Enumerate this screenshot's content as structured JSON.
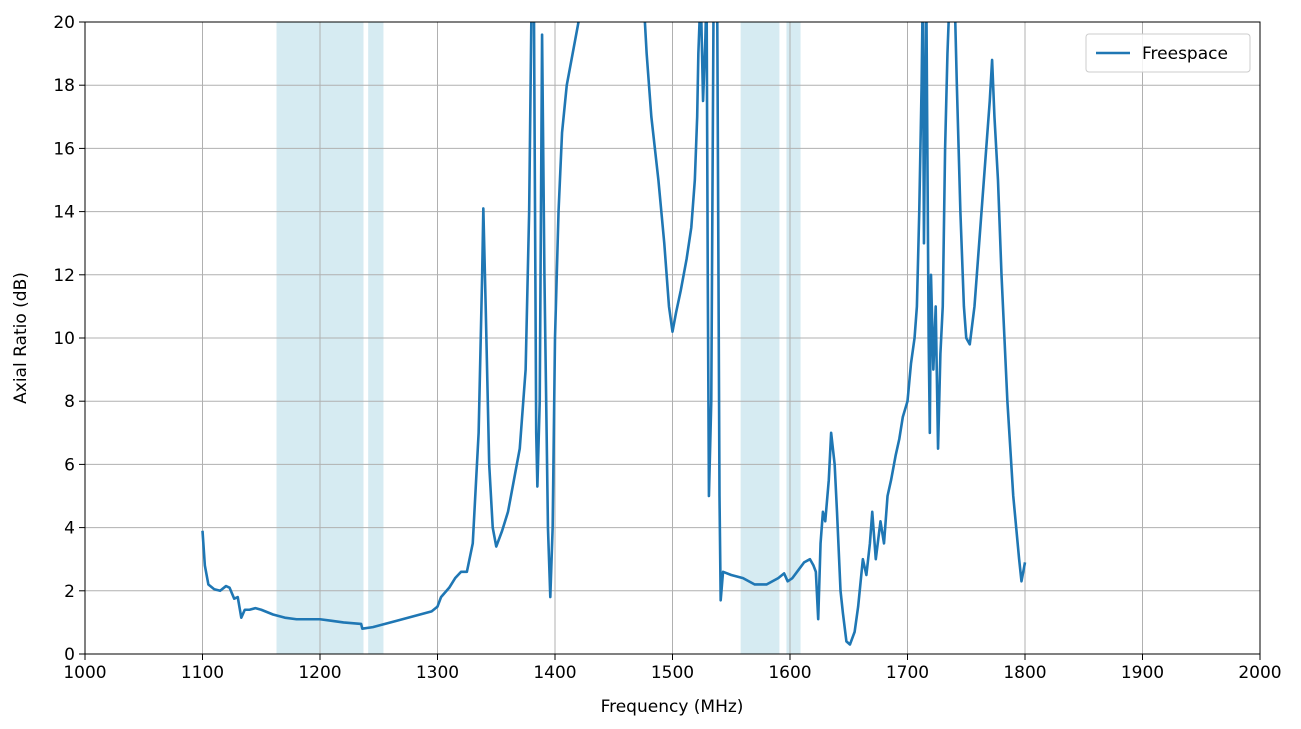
{
  "chart_data": {
    "type": "line",
    "xlabel": "Frequency (MHz)",
    "ylabel": "Axial Ratio (dB)",
    "xlim": [
      1000,
      2000
    ],
    "xticks": [
      1000,
      1100,
      1200,
      1300,
      1400,
      1500,
      1600,
      1700,
      1800,
      1900,
      2000
    ],
    "ylim": [
      0,
      20
    ],
    "yticks": [
      0,
      2,
      4,
      6,
      8,
      10,
      12,
      14,
      16,
      18,
      20
    ],
    "grid": true,
    "legend": "upper right",
    "shaded_regions": [
      [
        1163,
        1237
      ],
      [
        1241,
        1254
      ],
      [
        1558,
        1591
      ],
      [
        1597,
        1609
      ]
    ],
    "shade_color": "#add8e6",
    "x": [
      1100,
      1102,
      1105,
      1110,
      1115,
      1120,
      1123,
      1127,
      1130,
      1133,
      1136,
      1140,
      1145,
      1150,
      1160,
      1170,
      1180,
      1200,
      1210,
      1220,
      1235,
      1236,
      1245,
      1255,
      1265,
      1280,
      1295,
      1300,
      1303,
      1310,
      1315,
      1320,
      1325,
      1330,
      1335,
      1338,
      1339,
      1341,
      1344,
      1347,
      1350,
      1355,
      1360,
      1365,
      1370,
      1375,
      1378,
      1380,
      1382,
      1384,
      1385,
      1387,
      1389,
      1391,
      1394,
      1396,
      1398,
      1400,
      1403,
      1406,
      1410,
      1415,
      1425,
      1475,
      1478,
      1482,
      1488,
      1493,
      1497,
      1500,
      1503,
      1507,
      1512,
      1516,
      1519,
      1521,
      1522,
      1524,
      1526,
      1528,
      1529,
      1530,
      1531,
      1533,
      1535,
      1538,
      1540,
      1541,
      1543,
      1550,
      1560,
      1570,
      1580,
      1590,
      1595,
      1598,
      1602,
      1608,
      1612,
      1617,
      1620,
      1622,
      1624,
      1626,
      1628,
      1630,
      1633,
      1635,
      1638,
      1640,
      1643,
      1645,
      1648,
      1651,
      1655,
      1658,
      1662,
      1665,
      1668,
      1670,
      1673,
      1677,
      1680,
      1683,
      1686,
      1690,
      1693,
      1696,
      1700,
      1703,
      1706,
      1708,
      1710,
      1712,
      1713,
      1714,
      1716,
      1718,
      1719,
      1720,
      1722,
      1724,
      1726,
      1728,
      1730,
      1732,
      1734,
      1736,
      1740,
      1742,
      1745,
      1748,
      1750,
      1753,
      1757,
      1760,
      1763,
      1767,
      1770,
      1772,
      1774,
      1777,
      1780,
      1785,
      1790,
      1795,
      1797,
      1800
    ],
    "series": [
      {
        "name": "Freespace",
        "color": "#1f77b4",
        "values": [
          3.9,
          2.8,
          2.2,
          2.05,
          2.0,
          2.15,
          2.1,
          1.75,
          1.8,
          1.15,
          1.4,
          1.4,
          1.45,
          1.4,
          1.25,
          1.15,
          1.1,
          1.1,
          1.05,
          1.0,
          0.95,
          0.8,
          0.85,
          0.95,
          1.05,
          1.2,
          1.35,
          1.5,
          1.8,
          2.1,
          2.4,
          2.6,
          2.6,
          3.5,
          7,
          12,
          14.1,
          11,
          6,
          4,
          3.4,
          3.9,
          4.5,
          5.5,
          6.5,
          9,
          14,
          20.5,
          21,
          7,
          5.3,
          8,
          19.6,
          12,
          4,
          1.8,
          4,
          10,
          14,
          16.5,
          18,
          19,
          21,
          21,
          19,
          17,
          15,
          13,
          11,
          10.2,
          10.8,
          11.5,
          12.5,
          13.5,
          15,
          17,
          19,
          21,
          17.5,
          19.5,
          21,
          12,
          5,
          8,
          21,
          21,
          5,
          1.7,
          2.6,
          2.5,
          2.4,
          2.2,
          2.2,
          2.4,
          2.55,
          2.3,
          2.4,
          2.7,
          2.9,
          3.0,
          2.8,
          2.6,
          1.1,
          3.5,
          4.5,
          4.2,
          5.5,
          7.0,
          6.0,
          4.5,
          2.0,
          1.3,
          0.4,
          0.3,
          0.7,
          1.5,
          3.0,
          2.5,
          3.5,
          4.5,
          3.0,
          4.2,
          3.5,
          5,
          5.5,
          6.3,
          6.8,
          7.5,
          8,
          9.2,
          10,
          11,
          14,
          18,
          21,
          13,
          21,
          10,
          7,
          12,
          9,
          11,
          6.5,
          9.5,
          11,
          16,
          19,
          21,
          21,
          18,
          14,
          11,
          10,
          9.8,
          11,
          12.5,
          14,
          16,
          17.5,
          18.8,
          17,
          15,
          12,
          8,
          5,
          3.0,
          2.3,
          2.9
        ]
      }
    ]
  }
}
